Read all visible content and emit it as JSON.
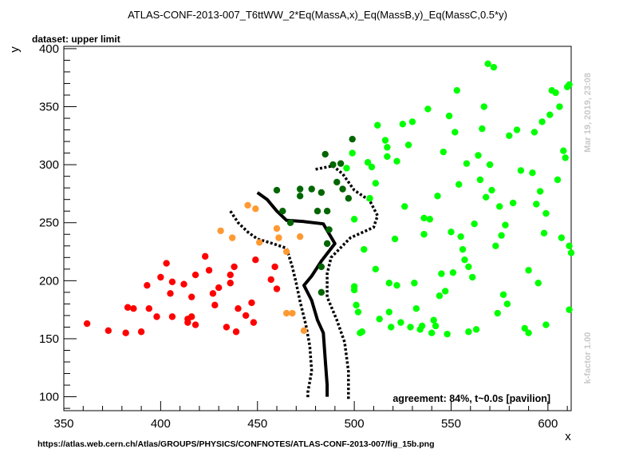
{
  "chart_data": {
    "type": "scatter",
    "title": "ATLAS-CONF-2013-007_T6ttWW_2*Eq(MassA,x)_Eq(MassB,y)_Eq(MassC,0.5*y)",
    "subtitle": "dataset: upper limit",
    "xlabel": "x",
    "ylabel": "y",
    "xlim": [
      350,
      612
    ],
    "ylim": [
      88,
      402
    ],
    "xticks": [
      350,
      400,
      450,
      500,
      550,
      600
    ],
    "yticks": [
      100,
      150,
      200,
      250,
      300,
      350,
      400
    ],
    "timestamp": "Mar 19, 2019, 23:08",
    "kfactor": "k-factor 1.00",
    "agreement": "agreement: 84%, t~0.0s [pavilion]",
    "source_url": "https://atlas.web.cern.ch/Atlas/GROUPS/PHYSICS/CONFNOTES/ATLAS-CONF-2013-007/fig_15b.png",
    "colors": {
      "excluded": "#ff0000",
      "excluded_disagree": "#ff9933",
      "allowed_disagree": "#006600",
      "allowed": "#00ff00",
      "contour": "#000000"
    },
    "series": [
      {
        "color_key": "excluded",
        "points": [
          [
            362,
            163
          ],
          [
            373,
            157
          ],
          [
            382,
            155
          ],
          [
            383,
            177
          ],
          [
            386,
            176
          ],
          [
            390,
            156
          ],
          [
            393,
            196
          ],
          [
            394,
            176
          ],
          [
            398,
            169
          ],
          [
            400,
            203
          ],
          [
            403,
            215
          ],
          [
            405,
            189
          ],
          [
            406,
            169
          ],
          [
            406,
            199
          ],
          [
            412,
            197
          ],
          [
            414,
            167
          ],
          [
            414,
            164
          ],
          [
            416,
            169
          ],
          [
            416,
            186
          ],
          [
            418,
            205
          ],
          [
            418,
            162
          ],
          [
            423,
            221
          ],
          [
            425,
            209
          ],
          [
            427,
            189
          ],
          [
            428,
            179
          ],
          [
            430,
            194
          ],
          [
            434,
            160
          ],
          [
            436,
            205
          ],
          [
            436,
            198
          ],
          [
            438,
            212
          ],
          [
            439,
            156
          ],
          [
            440,
            176
          ],
          [
            444,
            170
          ],
          [
            447,
            181
          ],
          [
            448,
            164
          ],
          [
            449,
            218
          ],
          [
            457,
            201
          ],
          [
            459,
            212
          ],
          [
            460,
            193
          ]
        ]
      },
      {
        "color_key": "excluded_disagree",
        "points": [
          [
            431,
            243
          ],
          [
            437,
            237
          ],
          [
            445,
            265
          ],
          [
            449,
            262
          ],
          [
            451,
            233
          ],
          [
            460,
            245
          ],
          [
            461,
            237
          ],
          [
            465,
            225
          ],
          [
            465,
            172
          ],
          [
            468,
            172
          ],
          [
            472,
            238
          ],
          [
            474,
            157
          ]
        ]
      },
      {
        "color_key": "allowed_disagree",
        "points": [
          [
            460,
            278
          ],
          [
            463,
            260
          ],
          [
            467,
            250
          ],
          [
            472,
            273
          ],
          [
            472,
            279
          ],
          [
            478,
            279
          ],
          [
            481,
            260
          ],
          [
            483,
            276
          ],
          [
            483,
            212
          ],
          [
            483,
            190
          ],
          [
            485,
            309
          ],
          [
            486,
            260
          ],
          [
            486,
            232
          ],
          [
            487,
            244
          ],
          [
            489,
            300
          ],
          [
            491,
            285
          ],
          [
            493,
            301
          ],
          [
            494,
            279
          ],
          [
            497,
            271
          ],
          [
            499,
            322
          ]
        ]
      },
      {
        "color_key": "allowed",
        "points": [
          [
            496,
            297
          ],
          [
            499,
            310
          ],
          [
            500,
            253
          ],
          [
            500,
            195
          ],
          [
            500,
            192
          ],
          [
            501,
            179
          ],
          [
            502,
            173
          ],
          [
            503,
            155
          ],
          [
            504,
            156
          ],
          [
            505,
            227
          ],
          [
            507,
            302
          ],
          [
            508,
            271
          ],
          [
            509,
            298
          ],
          [
            511,
            284
          ],
          [
            511,
            210
          ],
          [
            512,
            334
          ],
          [
            513,
            167
          ],
          [
            516,
            321
          ],
          [
            517,
            315
          ],
          [
            517,
            307
          ],
          [
            518,
            173
          ],
          [
            518,
            198
          ],
          [
            519,
            160
          ],
          [
            521,
            236
          ],
          [
            522,
            303
          ],
          [
            522,
            196
          ],
          [
            524,
            164
          ],
          [
            525,
            335
          ],
          [
            526,
            264
          ],
          [
            528,
            317
          ],
          [
            529,
            160
          ],
          [
            530,
            337
          ],
          [
            531,
            198
          ],
          [
            532,
            176
          ],
          [
            534,
            158
          ],
          [
            535,
            161
          ],
          [
            536,
            254
          ],
          [
            536,
            240
          ],
          [
            538,
            348
          ],
          [
            539,
            253
          ],
          [
            540,
            155
          ],
          [
            541,
            166
          ],
          [
            542,
            161
          ],
          [
            543,
            273
          ],
          [
            544,
            187
          ],
          [
            545,
            206
          ],
          [
            546,
            311
          ],
          [
            547,
            191
          ],
          [
            548,
            154
          ],
          [
            549,
            342
          ],
          [
            550,
            242
          ],
          [
            551,
            207
          ],
          [
            552,
            328
          ],
          [
            553,
            364
          ],
          [
            554,
            283
          ],
          [
            555,
            238
          ],
          [
            556,
            227
          ],
          [
            557,
            218
          ],
          [
            558,
            301
          ],
          [
            559,
            156
          ],
          [
            559,
            212
          ],
          [
            561,
            203
          ],
          [
            562,
            249
          ],
          [
            563,
            158
          ],
          [
            564,
            308
          ],
          [
            565,
            287
          ],
          [
            566,
            331
          ],
          [
            567,
            350
          ],
          [
            568,
            272
          ],
          [
            569,
            387
          ],
          [
            570,
            300
          ],
          [
            571,
            278
          ],
          [
            572,
            384
          ],
          [
            573,
            230
          ],
          [
            574,
            172
          ],
          [
            575,
            264
          ],
          [
            576,
            239
          ],
          [
            577,
            188
          ],
          [
            578,
            248
          ],
          [
            579,
            180
          ],
          [
            580,
            325
          ],
          [
            582,
            267
          ],
          [
            584,
            330
          ],
          [
            586,
            295
          ],
          [
            588,
            159
          ],
          [
            590,
            209
          ],
          [
            590,
            155
          ],
          [
            592,
            293
          ],
          [
            593,
            328
          ],
          [
            594,
            266
          ],
          [
            595,
            198
          ],
          [
            596,
            277
          ],
          [
            597,
            337
          ],
          [
            598,
            241
          ],
          [
            599,
            162
          ],
          [
            599,
            258
          ],
          [
            601,
            343
          ],
          [
            602,
            364
          ],
          [
            604,
            362
          ],
          [
            605,
            287
          ],
          [
            606,
            350
          ],
          [
            607,
            237
          ],
          [
            608,
            312
          ],
          [
            609,
            306
          ],
          [
            610,
            367
          ],
          [
            611,
            175
          ],
          [
            611,
            230
          ],
          [
            611,
            369
          ],
          [
            612,
            224
          ]
        ]
      }
    ],
    "contours": [
      {
        "style": "solid",
        "points": [
          [
            450,
            276
          ],
          [
            455,
            270
          ],
          [
            460,
            260
          ],
          [
            465,
            252
          ],
          [
            474,
            251
          ],
          [
            484,
            249
          ],
          [
            490,
            232
          ],
          [
            483,
            217
          ],
          [
            478,
            204
          ],
          [
            474,
            196
          ],
          [
            478,
            183
          ],
          [
            481,
            166
          ],
          [
            484,
            155
          ],
          [
            485,
            132
          ],
          [
            486,
            110
          ],
          [
            486,
            100
          ]
        ]
      },
      {
        "style": "dotted",
        "points": [
          [
            436,
            260
          ],
          [
            440,
            250
          ],
          [
            445,
            242
          ],
          [
            450,
            236
          ],
          [
            458,
            232
          ],
          [
            465,
            228
          ],
          [
            468,
            212
          ],
          [
            470,
            198
          ],
          [
            472,
            182
          ],
          [
            475,
            162
          ],
          [
            477,
            144
          ],
          [
            478,
            122
          ],
          [
            476,
            104
          ],
          [
            476,
            98
          ]
        ]
      },
      {
        "style": "dotted",
        "points": [
          [
            480,
            296
          ],
          [
            489,
            299
          ],
          [
            494,
            292
          ],
          [
            500,
            278
          ],
          [
            508,
            269
          ],
          [
            512,
            256
          ],
          [
            510,
            246
          ],
          [
            498,
            237
          ],
          [
            488,
            220
          ],
          [
            486,
            206
          ],
          [
            486,
            186
          ],
          [
            491,
            166
          ],
          [
            495,
            147
          ],
          [
            497,
            122
          ],
          [
            497,
            100
          ],
          [
            497,
            98
          ]
        ]
      }
    ]
  }
}
